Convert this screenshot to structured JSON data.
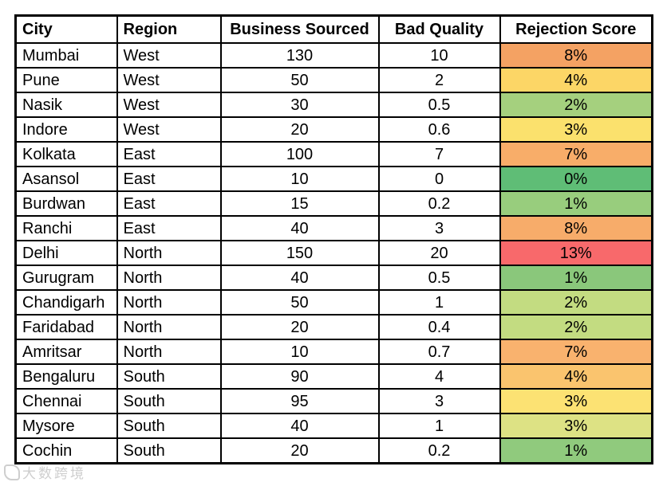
{
  "chart_data": {
    "type": "table",
    "title": "",
    "legend": "none",
    "grid": "full black gridlines, thick outer border",
    "columns": [
      {
        "key": "city",
        "label": "City",
        "align": "left"
      },
      {
        "key": "region",
        "label": "Region",
        "align": "left"
      },
      {
        "key": "business_sourced",
        "label": "Business Sourced",
        "align": "center"
      },
      {
        "key": "bad_quality",
        "label": "Bad Quality",
        "align": "center"
      },
      {
        "key": "rejection_score",
        "label": "Rejection Score",
        "align": "center"
      }
    ],
    "rows": [
      {
        "city": "Mumbai",
        "region": "West",
        "business_sourced": "130",
        "bad_quality": "10",
        "rejection_score": "8%",
        "rejection_color": "#F4A263"
      },
      {
        "city": "Pune",
        "region": "West",
        "business_sourced": "50",
        "bad_quality": "2",
        "rejection_score": "4%",
        "rejection_color": "#FCD666"
      },
      {
        "city": "Nasik",
        "region": "West",
        "business_sourced": "30",
        "bad_quality": "0.5",
        "rejection_score": "2%",
        "rejection_color": "#A5D07E"
      },
      {
        "city": "Indore",
        "region": "West",
        "business_sourced": "20",
        "bad_quality": "0.6",
        "rejection_score": "3%",
        "rejection_color": "#FBE16D"
      },
      {
        "city": "Kolkata",
        "region": "East",
        "business_sourced": "100",
        "bad_quality": "7",
        "rejection_score": "7%",
        "rejection_color": "#F8AD69"
      },
      {
        "city": "Asansol",
        "region": "East",
        "business_sourced": "10",
        "bad_quality": "0",
        "rejection_score": "0%",
        "rejection_color": "#5FBD76"
      },
      {
        "city": "Burdwan",
        "region": "East",
        "business_sourced": "15",
        "bad_quality": "0.2",
        "rejection_score": "1%",
        "rejection_color": "#98CD7D"
      },
      {
        "city": "Ranchi",
        "region": "East",
        "business_sourced": "40",
        "bad_quality": "3",
        "rejection_score": "8%",
        "rejection_color": "#F7AC6A"
      },
      {
        "city": "Delhi",
        "region": "North",
        "business_sourced": "150",
        "bad_quality": "20",
        "rejection_score": "13%",
        "rejection_color": "#F8696B"
      },
      {
        "city": "Gurugram",
        "region": "North",
        "business_sourced": "40",
        "bad_quality": "0.5",
        "rejection_score": "1%",
        "rejection_color": "#8AC77B"
      },
      {
        "city": "Chandigarh",
        "region": "North",
        "business_sourced": "50",
        "bad_quality": "1",
        "rejection_score": "2%",
        "rejection_color": "#C3DC81"
      },
      {
        "city": "Faridabad",
        "region": "North",
        "business_sourced": "20",
        "bad_quality": "0.4",
        "rejection_score": "2%",
        "rejection_color": "#C3DC81"
      },
      {
        "city": "Amritsar",
        "region": "North",
        "business_sourced": "10",
        "bad_quality": "0.7",
        "rejection_score": "7%",
        "rejection_color": "#F9B26E"
      },
      {
        "city": "Bengaluru",
        "region": "South",
        "business_sourced": "90",
        "bad_quality": "4",
        "rejection_score": "4%",
        "rejection_color": "#FAC46E"
      },
      {
        "city": "Chennai",
        "region": "South",
        "business_sourced": "95",
        "bad_quality": "3",
        "rejection_score": "3%",
        "rejection_color": "#FCE273"
      },
      {
        "city": "Mysore",
        "region": "South",
        "business_sourced": "40",
        "bad_quality": "1",
        "rejection_score": "3%",
        "rejection_color": "#DDE284"
      },
      {
        "city": "Cochin",
        "region": "South",
        "business_sourced": "20",
        "bad_quality": "0.2",
        "rejection_score": "1%",
        "rejection_color": "#90CA7D"
      }
    ],
    "color_scale": {
      "description": "3-color conditional formatting on Rejection Score",
      "min_color": "#63BE7B",
      "mid_color": "#FFEB84",
      "max_color": "#F8696B",
      "min_value": "0%",
      "max_value": "13%"
    }
  },
  "watermark": {
    "text": "大数跨境"
  },
  "colors": {
    "border": "#000000",
    "background": "#FFFFFF",
    "text": "#000000",
    "watermark": "#C3C3C3"
  }
}
